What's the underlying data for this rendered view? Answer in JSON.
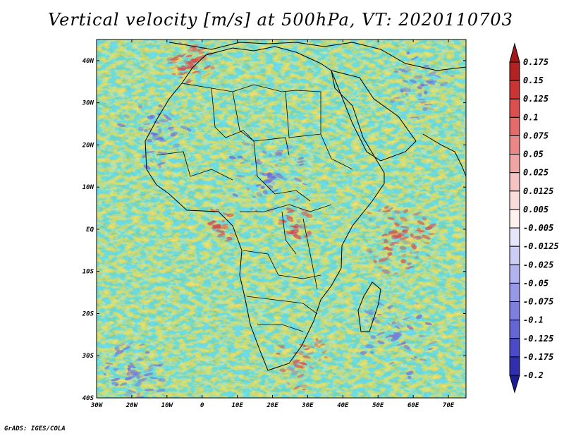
{
  "title": "Vertical velocity [m/s] at 500hPa, VT: 2020110703",
  "footer": "GrADS: IGES/COLA",
  "map": {
    "lon_range": [
      -30,
      75
    ],
    "lat_range": [
      -40,
      45
    ],
    "lon_ticks": [
      {
        "value": -30,
        "label": "30W"
      },
      {
        "value": -20,
        "label": "20W"
      },
      {
        "value": -10,
        "label": "10W"
      },
      {
        "value": 0,
        "label": "0"
      },
      {
        "value": 10,
        "label": "10E"
      },
      {
        "value": 20,
        "label": "20E"
      },
      {
        "value": 30,
        "label": "30E"
      },
      {
        "value": 40,
        "label": "40E"
      },
      {
        "value": 50,
        "label": "50E"
      },
      {
        "value": 60,
        "label": "60E"
      },
      {
        "value": 70,
        "label": "70E"
      }
    ],
    "lat_ticks": [
      {
        "value": 40,
        "label": "40N"
      },
      {
        "value": 30,
        "label": "30N"
      },
      {
        "value": 20,
        "label": "20N"
      },
      {
        "value": 10,
        "label": "10N"
      },
      {
        "value": 0,
        "label": "EQ"
      },
      {
        "value": -10,
        "label": "10S"
      },
      {
        "value": -20,
        "label": "20S"
      },
      {
        "value": -30,
        "label": "30S"
      },
      {
        "value": -40,
        "label": "40S"
      }
    ]
  },
  "colorbar": {
    "unit": "m/s",
    "entries": [
      {
        "label": "0.175",
        "color": "#b22222"
      },
      {
        "label": "0.15",
        "color": "#cc3333"
      },
      {
        "label": "0.125",
        "color": "#dd4f4f"
      },
      {
        "label": "0.1",
        "color": "#e56a6a"
      },
      {
        "label": "0.075",
        "color": "#ec8787"
      },
      {
        "label": "0.05",
        "color": "#f2a4a4"
      },
      {
        "label": "0.025",
        "color": "#f7c2c2"
      },
      {
        "label": "0.0125",
        "color": "#fbdcdc"
      },
      {
        "label": "0.005",
        "color": "#fff0f0"
      },
      {
        "label": "-0.005",
        "color": "#ffffff"
      },
      {
        "label": "-0.0125",
        "color": "#e6e6fb"
      },
      {
        "label": "-0.025",
        "color": "#ccccf5"
      },
      {
        "label": "-0.05",
        "color": "#b2b2ef"
      },
      {
        "label": "-0.075",
        "color": "#9898e8"
      },
      {
        "label": "-0.1",
        "color": "#7f7fe0"
      },
      {
        "label": "-0.125",
        "color": "#6565d6"
      },
      {
        "label": "-0.175",
        "color": "#4b4bc9"
      },
      {
        "label": "-0.2",
        "color": "#2f2fb0"
      }
    ],
    "top_arrow_color": "#a01818",
    "bottom_arrow_color": "#1c1c9a"
  },
  "colors": {
    "positive_cluster": "#d35050",
    "negative_cluster": "#6a6ae0",
    "field_base": "#f2efff",
    "border": "#000000"
  }
}
